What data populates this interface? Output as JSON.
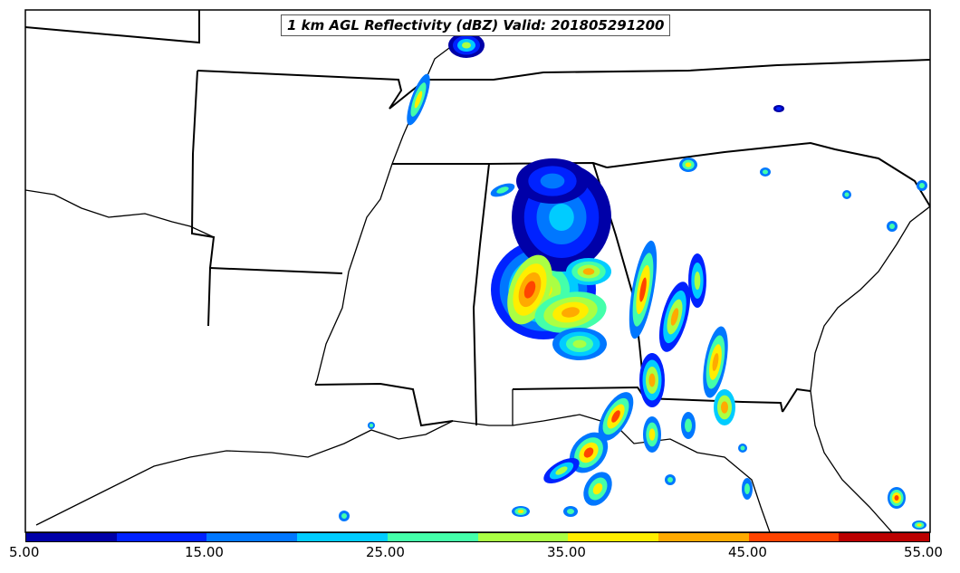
{
  "map": {
    "title": "1 km AGL Reflectivity (dBZ) Valid: 201805291200",
    "basemap": "Southeastern United States state boundaries and coastline",
    "field": "radar reflectivity",
    "colors": {
      "border": "#000000",
      "background": "#ffffff"
    }
  },
  "colorbar": {
    "ticks": [
      "5.00",
      "15.00",
      "25.00",
      "35.00",
      "45.00",
      "55.00"
    ],
    "colors": [
      "#0000a8",
      "#0022ff",
      "#0077ff",
      "#00ccff",
      "#44ffaa",
      "#aaff44",
      "#ffee00",
      "#ffaa00",
      "#ff4400",
      "#bb0000"
    ]
  }
}
